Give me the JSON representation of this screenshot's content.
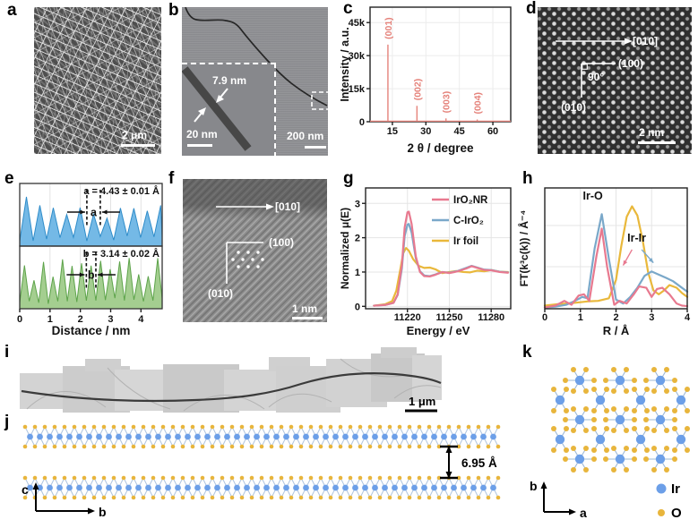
{
  "colors": {
    "xrd_peak": "#e5837b",
    "ir_atom": "#6c9fe8",
    "o_atom": "#e8b53c",
    "bond": "#a9c0dc"
  },
  "panels": {
    "a": {
      "label": "a",
      "scale_bar": "2 μm"
    },
    "b": {
      "label": "b",
      "scale_bar": "200 nm",
      "inset": {
        "width_label": "7.9 nm",
        "scale_bar": "20 nm"
      }
    },
    "c": {
      "label": "c"
    },
    "d": {
      "label": "d",
      "direction_label": "[010]",
      "plane1": "(100)",
      "angle": "90°",
      "plane2": "(010)",
      "scale_bar": "2 nm"
    },
    "e": {
      "label": "e"
    },
    "f": {
      "label": "f",
      "direction_label": "[010]",
      "plane1": "(100)",
      "plane2": "(010)",
      "scale_bar": "1 nm"
    },
    "g": {
      "label": "g"
    },
    "h": {
      "label": "h"
    },
    "i": {
      "label": "i",
      "scale_bar": "1 μm"
    },
    "j": {
      "label": "j",
      "spacing": "6.95 Å",
      "axis_v": "c",
      "axis_h": "b"
    },
    "k": {
      "label": "k",
      "axis_v": "b",
      "axis_h": "a",
      "legend": [
        {
          "name": "Ir",
          "color": "#6c9fe8"
        },
        {
          "name": "O",
          "color": "#e8b53c"
        }
      ]
    }
  },
  "chart_data": [
    {
      "panel": "c",
      "type": "line",
      "title": "",
      "xlabel": "2 θ / degree",
      "ylabel": "Intensity / a.u.",
      "xlim": [
        5,
        68
      ],
      "ylim": [
        0,
        52000
      ],
      "xticks": [
        15,
        30,
        45,
        60
      ],
      "ytick_labels": [
        "0",
        "15k",
        "30k",
        "45k"
      ],
      "ytick_values": [
        0,
        15000,
        30000,
        45000
      ],
      "grid": true,
      "peaks": [
        {
          "label": "(001)",
          "two_theta": 13,
          "intensity": 35000
        },
        {
          "label": "(002)",
          "two_theta": 26,
          "intensity": 7200
        },
        {
          "label": "(003)",
          "two_theta": 39,
          "intensity": 1500
        },
        {
          "label": "(004)",
          "two_theta": 53,
          "intensity": 1000
        }
      ],
      "color": "#e5837b"
    },
    {
      "panel": "e",
      "type": "area",
      "xlabel": "Distance / nm",
      "xticks": [
        0,
        1,
        2,
        3,
        4
      ],
      "xlim": [
        0,
        4.7
      ],
      "series": [
        {
          "name": "a",
          "annotation": "a = 4.43 ± 0.01 Å",
          "marker_letter": "a",
          "period_nm": 0.443,
          "line": "#2f8cc9",
          "fill": "#74b9e6"
        },
        {
          "name": "b",
          "annotation": "b = 3.14 ± 0.02 Å",
          "marker_letter": "b",
          "period_nm": 0.314,
          "line": "#5da34a",
          "fill": "#a4ce90"
        }
      ]
    },
    {
      "panel": "g",
      "type": "line",
      "xlabel": "Energy / eV",
      "ylabel": "Normalized μ(E)",
      "xlim": [
        11190,
        11294
      ],
      "ylim": [
        -0.07,
        3.45
      ],
      "xticks": [
        11220,
        11250,
        11280
      ],
      "yticks": [
        0,
        1,
        2,
        3
      ],
      "grid": true,
      "legend_position": "top-right",
      "series": [
        {
          "name": "IrO₂NR",
          "color": "#e8798f",
          "x": [
            11196,
            11204,
            11210,
            11213,
            11216,
            11218,
            11220,
            11221,
            11223,
            11226,
            11229,
            11232,
            11236,
            11240,
            11245,
            11250,
            11256,
            11262,
            11266,
            11270,
            11275,
            11280,
            11286,
            11292
          ],
          "y": [
            0.02,
            0.04,
            0.1,
            0.35,
            1.2,
            2.3,
            2.74,
            2.76,
            2.4,
            1.45,
            1.0,
            0.88,
            0.87,
            0.92,
            1.0,
            0.97,
            1.02,
            1.1,
            1.17,
            1.12,
            1.06,
            1.05,
            1.0,
            0.98
          ]
        },
        {
          "name": "C-IrO₂",
          "color": "#7aa8c9",
          "x": [
            11196,
            11204,
            11210,
            11213,
            11216,
            11218,
            11220,
            11221,
            11223,
            11226,
            11229,
            11232,
            11236,
            11240,
            11245,
            11250,
            11256,
            11262,
            11266,
            11270,
            11275,
            11280,
            11286,
            11292
          ],
          "y": [
            0.02,
            0.04,
            0.1,
            0.33,
            1.1,
            2.05,
            2.38,
            2.4,
            2.15,
            1.4,
            1.02,
            0.9,
            0.88,
            0.93,
            1.0,
            0.98,
            1.03,
            1.12,
            1.18,
            1.13,
            1.07,
            1.06,
            1.01,
            0.99
          ]
        },
        {
          "name": "Ir foil",
          "color": "#e9b83b",
          "x": [
            11196,
            11204,
            11209,
            11212,
            11215,
            11217,
            11219,
            11221,
            11224,
            11228,
            11232,
            11236,
            11240,
            11245,
            11250,
            11255,
            11260,
            11265,
            11270,
            11275,
            11280,
            11286,
            11292
          ],
          "y": [
            0.02,
            0.06,
            0.15,
            0.45,
            1.1,
            1.55,
            1.7,
            1.62,
            1.38,
            1.18,
            1.12,
            1.13,
            1.08,
            0.97,
            1.0,
            1.03,
            1.0,
            0.99,
            1.04,
            1.02,
            1.06,
            1.01,
            1.0
          ]
        }
      ]
    },
    {
      "panel": "h",
      "type": "line",
      "xlabel": "R / Å",
      "ylabel": "FT(k³c(k)) / Å⁻⁴",
      "xlim": [
        0,
        4
      ],
      "ylim": [
        0,
        4.6
      ],
      "xticks": [
        0,
        1,
        2,
        3,
        4
      ],
      "grid": true,
      "annotations": [
        {
          "text": "Ir-O",
          "x": 1.35,
          "y": 4.15
        },
        {
          "text": "Ir-Ir",
          "x": 2.58,
          "y": 2.55
        }
      ],
      "series": [
        {
          "name": "IrO₂NR",
          "color": "#e8798f",
          "x": [
            0,
            0.3,
            0.55,
            0.75,
            0.95,
            1.1,
            1.25,
            1.45,
            1.6,
            1.75,
            1.95,
            2.1,
            2.3,
            2.5,
            2.65,
            2.85,
            3.0,
            3.15,
            3.3,
            3.5,
            3.7,
            3.85,
            4.0
          ],
          "y": [
            0.05,
            0.12,
            0.3,
            0.15,
            0.5,
            0.55,
            0.3,
            2.0,
            3.05,
            1.6,
            0.15,
            0.3,
            0.2,
            0.55,
            0.85,
            0.8,
            0.45,
            0.75,
            0.8,
            0.55,
            0.2,
            0.12,
            0.1
          ]
        },
        {
          "name": "C-IrO₂",
          "color": "#7aa8c9",
          "x": [
            0,
            0.3,
            0.6,
            0.85,
            1.05,
            1.2,
            1.4,
            1.6,
            1.8,
            2.0,
            2.2,
            2.4,
            2.6,
            2.8,
            3.0,
            3.2,
            3.4,
            3.6,
            3.8,
            4.0
          ],
          "y": [
            0.05,
            0.08,
            0.15,
            0.3,
            0.45,
            0.4,
            2.3,
            3.6,
            1.9,
            0.35,
            0.2,
            0.45,
            0.8,
            1.25,
            1.42,
            1.3,
            1.18,
            1.05,
            0.85,
            0.65
          ]
        },
        {
          "name": "Ir foil",
          "color": "#e9b83b",
          "x": [
            0,
            0.4,
            0.8,
            1.2,
            1.5,
            1.8,
            2.0,
            2.15,
            2.3,
            2.45,
            2.6,
            2.75,
            2.9,
            3.05,
            3.2,
            3.35,
            3.5,
            3.7,
            3.85,
            4.0
          ],
          "y": [
            0.12,
            0.18,
            0.22,
            0.28,
            0.3,
            0.4,
            1.1,
            2.4,
            3.5,
            3.9,
            3.55,
            2.6,
            1.4,
            0.7,
            0.55,
            0.7,
            0.9,
            0.8,
            0.6,
            0.45
          ]
        }
      ]
    }
  ]
}
